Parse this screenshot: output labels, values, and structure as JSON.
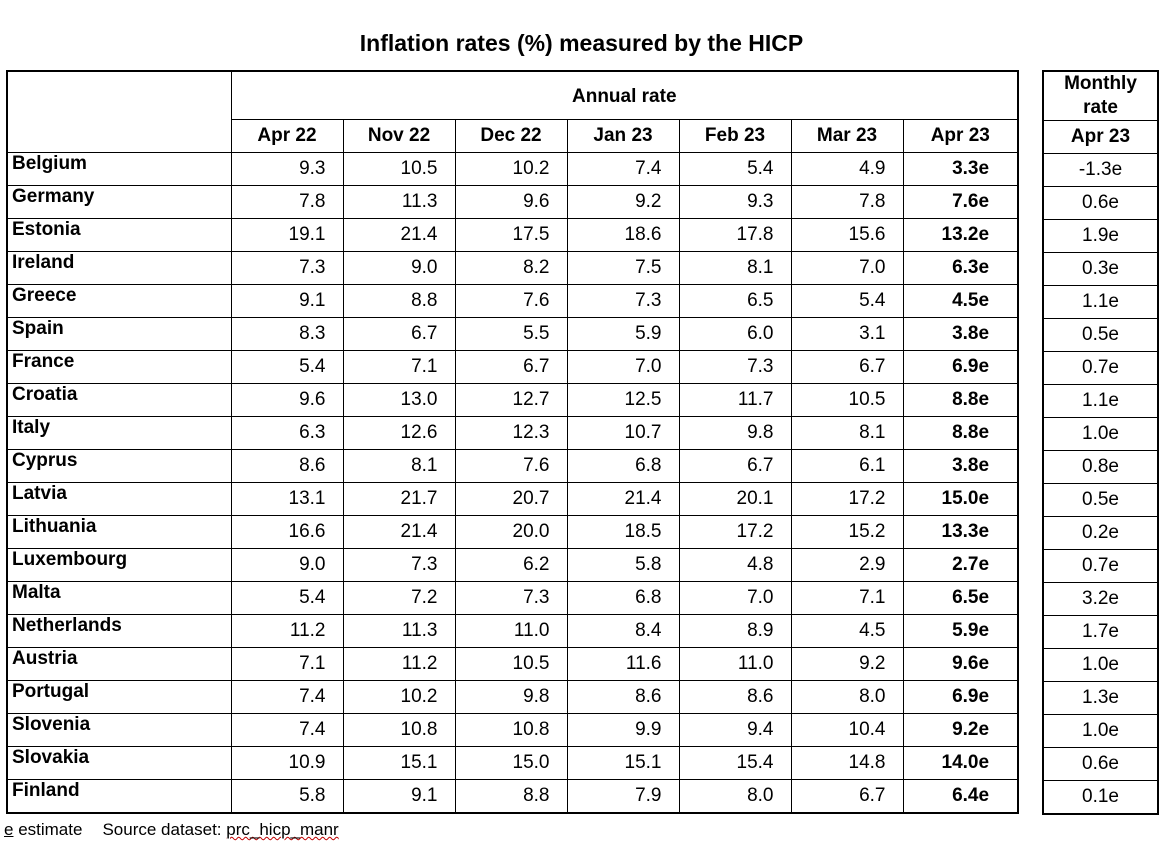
{
  "title": "Inflation rates (%) measured by the HICP",
  "annual_header": "Annual rate",
  "monthly_header": "Monthly rate",
  "months": [
    "Apr 22",
    "Nov 22",
    "Dec 22",
    "Jan 23",
    "Feb 23",
    "Mar 23",
    "Apr 23"
  ],
  "monthly_month": "Apr 23",
  "rows": [
    {
      "country": "Belgium",
      "values": [
        "9.3",
        "10.5",
        "10.2",
        "7.4",
        "5.4",
        "4.9",
        "3.3e"
      ],
      "monthly": "-1.3e"
    },
    {
      "country": "Germany",
      "values": [
        "7.8",
        "11.3",
        "9.6",
        "9.2",
        "9.3",
        "7.8",
        "7.6e"
      ],
      "monthly": "0.6e"
    },
    {
      "country": "Estonia",
      "values": [
        "19.1",
        "21.4",
        "17.5",
        "18.6",
        "17.8",
        "15.6",
        "13.2e"
      ],
      "monthly": "1.9e"
    },
    {
      "country": "Ireland",
      "values": [
        "7.3",
        "9.0",
        "8.2",
        "7.5",
        "8.1",
        "7.0",
        "6.3e"
      ],
      "monthly": "0.3e"
    },
    {
      "country": "Greece",
      "values": [
        "9.1",
        "8.8",
        "7.6",
        "7.3",
        "6.5",
        "5.4",
        "4.5e"
      ],
      "monthly": "1.1e"
    },
    {
      "country": "Spain",
      "values": [
        "8.3",
        "6.7",
        "5.5",
        "5.9",
        "6.0",
        "3.1",
        "3.8e"
      ],
      "monthly": "0.5e"
    },
    {
      "country": "France",
      "values": [
        "5.4",
        "7.1",
        "6.7",
        "7.0",
        "7.3",
        "6.7",
        "6.9e"
      ],
      "monthly": "0.7e"
    },
    {
      "country": "Croatia",
      "values": [
        "9.6",
        "13.0",
        "12.7",
        "12.5",
        "11.7",
        "10.5",
        "8.8e"
      ],
      "monthly": "1.1e"
    },
    {
      "country": "Italy",
      "values": [
        "6.3",
        "12.6",
        "12.3",
        "10.7",
        "9.8",
        "8.1",
        "8.8e"
      ],
      "monthly": "1.0e"
    },
    {
      "country": "Cyprus",
      "values": [
        "8.6",
        "8.1",
        "7.6",
        "6.8",
        "6.7",
        "6.1",
        "3.8e"
      ],
      "monthly": "0.8e"
    },
    {
      "country": "Latvia",
      "values": [
        "13.1",
        "21.7",
        "20.7",
        "21.4",
        "20.1",
        "17.2",
        "15.0e"
      ],
      "monthly": "0.5e"
    },
    {
      "country": "Lithuania",
      "values": [
        "16.6",
        "21.4",
        "20.0",
        "18.5",
        "17.2",
        "15.2",
        "13.3e"
      ],
      "monthly": "0.2e"
    },
    {
      "country": "Luxembourg",
      "values": [
        "9.0",
        "7.3",
        "6.2",
        "5.8",
        "4.8",
        "2.9",
        "2.7e"
      ],
      "monthly": "0.7e"
    },
    {
      "country": "Malta",
      "values": [
        "5.4",
        "7.2",
        "7.3",
        "6.8",
        "7.0",
        "7.1",
        "6.5e"
      ],
      "monthly": "3.2e"
    },
    {
      "country": "Netherlands",
      "values": [
        "11.2",
        "11.3",
        "11.0",
        "8.4",
        "8.9",
        "4.5",
        "5.9e"
      ],
      "monthly": "1.7e"
    },
    {
      "country": "Austria",
      "values": [
        "7.1",
        "11.2",
        "10.5",
        "11.6",
        "11.0",
        "9.2",
        "9.6e"
      ],
      "monthly": "1.0e"
    },
    {
      "country": "Portugal",
      "values": [
        "7.4",
        "10.2",
        "9.8",
        "8.6",
        "8.6",
        "8.0",
        "6.9e"
      ],
      "monthly": "1.3e"
    },
    {
      "country": "Slovenia",
      "values": [
        "7.4",
        "10.8",
        "10.8",
        "9.9",
        "9.4",
        "10.4",
        "9.2e"
      ],
      "monthly": "1.0e"
    },
    {
      "country": "Slovakia",
      "values": [
        "10.9",
        "15.1",
        "15.0",
        "15.1",
        "15.4",
        "14.8",
        "14.0e"
      ],
      "monthly": "0.6e"
    },
    {
      "country": "Finland",
      "values": [
        "5.8",
        "9.1",
        "8.8",
        "7.9",
        "8.0",
        "6.7",
        "6.4e"
      ],
      "monthly": "0.1e"
    }
  ],
  "footer": {
    "e_label": "e",
    "e_text": " estimate",
    "source_label": "Source dataset: ",
    "dataset": "prc_hicp_manr"
  }
}
